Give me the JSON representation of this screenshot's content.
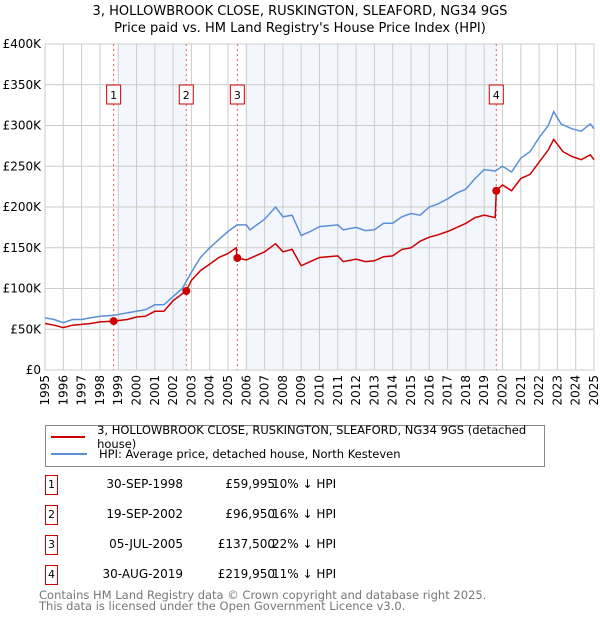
{
  "chart_data": {
    "type": "line",
    "title": "3, HOLLOWBROOK CLOSE, RUSKINGTON, SLEAFORD, NG34 9GS",
    "subtitle": "Price paid vs. HM Land Registry's House Price Index (HPI)",
    "xlim": [
      1995,
      2025
    ],
    "ylim": [
      0,
      400000
    ],
    "x_ticks": [
      "1995",
      "1996",
      "1997",
      "1998",
      "1999",
      "2000",
      "2001",
      "2002",
      "2003",
      "2004",
      "2005",
      "2006",
      "2007",
      "2008",
      "2009",
      "2010",
      "2011",
      "2012",
      "2013",
      "2014",
      "2015",
      "2016",
      "2017",
      "2018",
      "2019",
      "2020",
      "2021",
      "2022",
      "2023",
      "2024",
      "2025"
    ],
    "y_ticks": [
      {
        "v": 0,
        "label": "£0"
      },
      {
        "v": 50000,
        "label": "£50K"
      },
      {
        "v": 100000,
        "label": "£100K"
      },
      {
        "v": 150000,
        "label": "£150K"
      },
      {
        "v": 200000,
        "label": "£200K"
      },
      {
        "v": 250000,
        "label": "£250K"
      },
      {
        "v": 300000,
        "label": "£300K"
      },
      {
        "v": 350000,
        "label": "£350K"
      },
      {
        "v": 400000,
        "label": "£400K"
      }
    ],
    "grid": true,
    "shaded_ranges": [
      [
        1999.0,
        2002.72
      ],
      [
        2006.0,
        2019.66
      ]
    ],
    "series": [
      {
        "name": "3, HOLLOWBROOK CLOSE, RUSKINGTON, SLEAFORD, NG34 9GS (detached house)",
        "color": "#cc0000",
        "points": [
          [
            1995,
            57000
          ],
          [
            1995.5,
            55000
          ],
          [
            1996,
            52000
          ],
          [
            1996.5,
            55000
          ],
          [
            1997,
            56000
          ],
          [
            1997.5,
            57000
          ],
          [
            1998,
            59000
          ],
          [
            1998.75,
            60000
          ],
          [
            1999.5,
            62000
          ],
          [
            2000,
            65000
          ],
          [
            2000.5,
            66000
          ],
          [
            2001,
            72000
          ],
          [
            2001.5,
            72000
          ],
          [
            2002,
            85000
          ],
          [
            2002.72,
            97000
          ],
          [
            2003,
            110000
          ],
          [
            2003.5,
            122000
          ],
          [
            2004,
            130000
          ],
          [
            2004.5,
            138000
          ],
          [
            2005,
            143000
          ],
          [
            2005.45,
            150000
          ],
          [
            2005.5,
            137500
          ],
          [
            2006,
            135000
          ],
          [
            2006.5,
            140000
          ],
          [
            2007,
            145000
          ],
          [
            2007.6,
            155000
          ],
          [
            2008,
            145000
          ],
          [
            2008.5,
            148000
          ],
          [
            2009,
            128000
          ],
          [
            2009.5,
            133000
          ],
          [
            2010,
            138000
          ],
          [
            2011,
            140000
          ],
          [
            2011.3,
            133000
          ],
          [
            2012,
            136000
          ],
          [
            2012.5,
            133000
          ],
          [
            2013,
            134000
          ],
          [
            2013.5,
            139000
          ],
          [
            2014,
            140000
          ],
          [
            2014.5,
            148000
          ],
          [
            2015,
            150000
          ],
          [
            2015.5,
            158000
          ],
          [
            2016,
            163000
          ],
          [
            2016.5,
            166000
          ],
          [
            2017,
            170000
          ],
          [
            2017.5,
            175000
          ],
          [
            2018,
            180000
          ],
          [
            2018.5,
            187000
          ],
          [
            2019,
            190000
          ],
          [
            2019.6,
            187000
          ],
          [
            2019.66,
            219950
          ],
          [
            2020,
            227000
          ],
          [
            2020.5,
            220000
          ],
          [
            2021,
            235000
          ],
          [
            2021.5,
            240000
          ],
          [
            2022,
            255000
          ],
          [
            2022.5,
            270000
          ],
          [
            2022.8,
            283000
          ],
          [
            2023.3,
            268000
          ],
          [
            2023.8,
            262000
          ],
          [
            2024.3,
            258000
          ],
          [
            2024.8,
            264000
          ],
          [
            2025,
            258000
          ]
        ]
      },
      {
        "name": "HPI: Average price, detached house, North Kesteven",
        "color": "#5b8fd6",
        "points": [
          [
            1995,
            64000
          ],
          [
            1995.5,
            62000
          ],
          [
            1996,
            58000
          ],
          [
            1996.5,
            62000
          ],
          [
            1997,
            62000
          ],
          [
            1997.5,
            64000
          ],
          [
            1998,
            66000
          ],
          [
            1998.75,
            67000
          ],
          [
            1999.2,
            69000
          ],
          [
            2000,
            72000
          ],
          [
            2000.5,
            74000
          ],
          [
            2001,
            80000
          ],
          [
            2001.5,
            80000
          ],
          [
            2002,
            90000
          ],
          [
            2002.5,
            100000
          ],
          [
            2003,
            120000
          ],
          [
            2003.5,
            138000
          ],
          [
            2004,
            150000
          ],
          [
            2004.5,
            160000
          ],
          [
            2005,
            170000
          ],
          [
            2005.5,
            178000
          ],
          [
            2006,
            178000
          ],
          [
            2006.2,
            172000
          ],
          [
            2007,
            185000
          ],
          [
            2007.6,
            200000
          ],
          [
            2008,
            188000
          ],
          [
            2008.5,
            190000
          ],
          [
            2009,
            165000
          ],
          [
            2009.5,
            170000
          ],
          [
            2010,
            176000
          ],
          [
            2011,
            178000
          ],
          [
            2011.3,
            172000
          ],
          [
            2012,
            175000
          ],
          [
            2012.5,
            171000
          ],
          [
            2013,
            172000
          ],
          [
            2013.5,
            180000
          ],
          [
            2014,
            180000
          ],
          [
            2014.5,
            188000
          ],
          [
            2015,
            192000
          ],
          [
            2015.5,
            190000
          ],
          [
            2016,
            200000
          ],
          [
            2016.5,
            204000
          ],
          [
            2017,
            210000
          ],
          [
            2017.5,
            217000
          ],
          [
            2018,
            222000
          ],
          [
            2018.5,
            235000
          ],
          [
            2019,
            246000
          ],
          [
            2019.6,
            244000
          ],
          [
            2020,
            250000
          ],
          [
            2020.5,
            243000
          ],
          [
            2021,
            260000
          ],
          [
            2021.5,
            268000
          ],
          [
            2022,
            285000
          ],
          [
            2022.5,
            300000
          ],
          [
            2022.8,
            317000
          ],
          [
            2023.2,
            302000
          ],
          [
            2023.8,
            296000
          ],
          [
            2024.3,
            293000
          ],
          [
            2024.8,
            302000
          ],
          [
            2025,
            296000
          ]
        ]
      }
    ],
    "sales": [
      {
        "label": "1",
        "x": 1998.75,
        "price": 59995
      },
      {
        "label": "2",
        "x": 2002.72,
        "price": 96950
      },
      {
        "label": "3",
        "x": 2005.51,
        "price": 137500
      },
      {
        "label": "4",
        "x": 2019.66,
        "price": 219950
      }
    ]
  },
  "title_line1": "3, HOLLOWBROOK CLOSE, RUSKINGTON, SLEAFORD, NG34 9GS",
  "title_line2": "Price paid vs. HM Land Registry's House Price Index (HPI)",
  "legend": {
    "red": "3, HOLLOWBROOK CLOSE, RUSKINGTON, SLEAFORD, NG34 9GS (detached house)",
    "blue": "HPI: Average price, detached house, North Kesteven"
  },
  "table": [
    {
      "n": "1",
      "date": "30-SEP-1998",
      "price": "£59,995",
      "hpi": "10% ↓ HPI"
    },
    {
      "n": "2",
      "date": "19-SEP-2002",
      "price": "£96,950",
      "hpi": "16% ↓ HPI"
    },
    {
      "n": "3",
      "date": "05-JUL-2005",
      "price": "£137,500",
      "hpi": "22% ↓ HPI"
    },
    {
      "n": "4",
      "date": "30-AUG-2019",
      "price": "£219,950",
      "hpi": "11% ↓ HPI"
    }
  ],
  "footer": {
    "line1": "Contains HM Land Registry data © Crown copyright and database right 2025.",
    "line2": "This data is licensed under the Open Government Licence v3.0."
  }
}
